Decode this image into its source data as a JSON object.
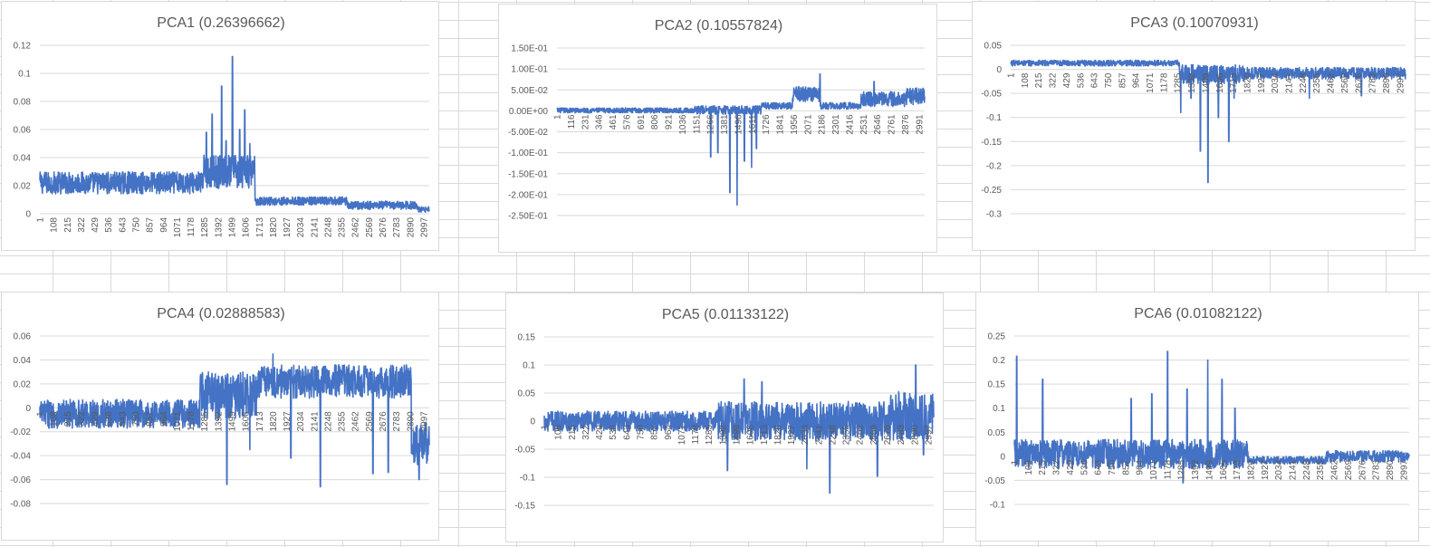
{
  "colors": {
    "series": "#4472c4",
    "grid": "#d9d9d9",
    "text": "#595959",
    "sheet_grid": "#d9d9d9"
  },
  "chart_data": [
    {
      "type": "line",
      "title": "PCA1 (0.26396662)",
      "xlabel": "",
      "ylabel": "",
      "ylim": [
        0,
        0.12
      ],
      "y_ticks": [
        0,
        0.02,
        0.04,
        0.06,
        0.08,
        0.1,
        0.12
      ],
      "y_tick_labels": [
        "0",
        "0.02",
        "0.04",
        "0.06",
        "0.08",
        "0.1",
        "0.12"
      ],
      "x_range": [
        1,
        3040
      ],
      "x_tick_labels": [
        "1",
        "108",
        "215",
        "322",
        "429",
        "536",
        "643",
        "750",
        "857",
        "964",
        "1071",
        "1178",
        "1285",
        "1392",
        "1499",
        "1606",
        "1713",
        "1820",
        "1927",
        "2034",
        "2141",
        "2248",
        "2355",
        "2462",
        "2569",
        "2676",
        "2783",
        "2890",
        "2997"
      ],
      "legend": false,
      "profile": {
        "segments": [
          {
            "from": 1,
            "to": 1280,
            "base": 0.022,
            "noise": 0.008
          },
          {
            "from": 1280,
            "to": 1680,
            "base": 0.03,
            "noise": 0.012
          },
          {
            "from": 1680,
            "to": 2400,
            "base": 0.009,
            "noise": 0.003
          },
          {
            "from": 2400,
            "to": 2950,
            "base": 0.006,
            "noise": 0.003
          },
          {
            "from": 2950,
            "to": 3040,
            "base": 0.003,
            "noise": 0.002
          }
        ],
        "spikes": [
          {
            "x": 1300,
            "y": 0.058
          },
          {
            "x": 1345,
            "y": 0.071
          },
          {
            "x": 1420,
            "y": 0.091
          },
          {
            "x": 1455,
            "y": 0.052
          },
          {
            "x": 1505,
            "y": 0.112
          },
          {
            "x": 1560,
            "y": 0.06
          },
          {
            "x": 1600,
            "y": 0.074
          },
          {
            "x": 1640,
            "y": 0.05
          }
        ]
      }
    },
    {
      "type": "line",
      "title": "PCA2 (0.10557824)",
      "xlabel": "",
      "ylabel": "",
      "ylim": [
        -0.25,
        0.15
      ],
      "y_ticks": [
        -0.25,
        -0.2,
        -0.15,
        -0.1,
        -0.05,
        0,
        0.05,
        0.1,
        0.15
      ],
      "y_tick_labels": [
        "-2.50E-01",
        "-2.00E-01",
        "-1.50E-01",
        "-1.00E-01",
        "-5.00E-02",
        "0.00E+00",
        "5.00E-02",
        "1.00E-01",
        "1.50E-01"
      ],
      "x_range": [
        1,
        3060
      ],
      "x_tick_labels": [
        "1",
        "116",
        "231",
        "346",
        "461",
        "576",
        "691",
        "806",
        "921",
        "1036",
        "1151",
        "1266",
        "1381",
        "1496",
        "1611",
        "1726",
        "1841",
        "1956",
        "2071",
        "2186",
        "2301",
        "2416",
        "2531",
        "2646",
        "2761",
        "2876",
        "2991"
      ],
      "legend": false,
      "profile": {
        "segments": [
          {
            "from": 1,
            "to": 1150,
            "base": 0.001,
            "noise": 0.006
          },
          {
            "from": 1150,
            "to": 1700,
            "base": 0.002,
            "noise": 0.01
          },
          {
            "from": 1700,
            "to": 1960,
            "base": 0.012,
            "noise": 0.008
          },
          {
            "from": 1960,
            "to": 2190,
            "base": 0.04,
            "noise": 0.018
          },
          {
            "from": 2190,
            "to": 2530,
            "base": 0.012,
            "noise": 0.008
          },
          {
            "from": 2530,
            "to": 2900,
            "base": 0.028,
            "noise": 0.018
          },
          {
            "from": 2900,
            "to": 3060,
            "base": 0.035,
            "noise": 0.02
          }
        ],
        "spikes": [
          {
            "x": 1280,
            "y": -0.11
          },
          {
            "x": 1340,
            "y": -0.1
          },
          {
            "x": 1440,
            "y": -0.195
          },
          {
            "x": 1500,
            "y": -0.225
          },
          {
            "x": 1560,
            "y": -0.12
          },
          {
            "x": 1620,
            "y": -0.135
          },
          {
            "x": 1660,
            "y": -0.09
          },
          {
            "x": 2190,
            "y": 0.088
          },
          {
            "x": 2640,
            "y": 0.07
          }
        ]
      }
    },
    {
      "type": "line",
      "title": "PCA3 (0.10070931)",
      "xlabel": "",
      "ylabel": "",
      "ylim": [
        -0.3,
        0.05
      ],
      "y_ticks": [
        -0.3,
        -0.25,
        -0.2,
        -0.15,
        -0.1,
        -0.05,
        0,
        0.05
      ],
      "y_tick_labels": [
        "-0.3",
        "-0.25",
        "-0.2",
        "-0.15",
        "-0.1",
        "-0.05",
        "0",
        "0.05"
      ],
      "x_range": [
        1,
        3040
      ],
      "x_tick_labels": [
        "1",
        "108",
        "215",
        "322",
        "429",
        "536",
        "643",
        "750",
        "857",
        "964",
        "1071",
        "1178",
        "1285",
        "1392",
        "1499",
        "1606",
        "1713",
        "1820",
        "1927",
        "2034",
        "2141",
        "2248",
        "2355",
        "2462",
        "2569",
        "2676",
        "2783",
        "2890",
        "2997"
      ],
      "legend": false,
      "profile": {
        "segments": [
          {
            "from": 1,
            "to": 1300,
            "base": 0.013,
            "noise": 0.006
          },
          {
            "from": 1300,
            "to": 1800,
            "base": -0.01,
            "noise": 0.02
          },
          {
            "from": 1800,
            "to": 3040,
            "base": -0.008,
            "noise": 0.012
          }
        ],
        "spikes": [
          {
            "x": 1310,
            "y": -0.09
          },
          {
            "x": 1390,
            "y": -0.06
          },
          {
            "x": 1460,
            "y": -0.17
          },
          {
            "x": 1520,
            "y": -0.235
          },
          {
            "x": 1600,
            "y": -0.1
          },
          {
            "x": 1680,
            "y": -0.15
          },
          {
            "x": 1720,
            "y": -0.06
          },
          {
            "x": 2300,
            "y": -0.06
          },
          {
            "x": 2700,
            "y": -0.055
          }
        ]
      }
    },
    {
      "type": "line",
      "title": "PCA4 (0.02888583)",
      "xlabel": "",
      "ylabel": "",
      "ylim": [
        -0.08,
        0.06
      ],
      "y_ticks": [
        -0.08,
        -0.06,
        -0.04,
        -0.02,
        0,
        0.02,
        0.04,
        0.06
      ],
      "y_tick_labels": [
        "-0.08",
        "-0.06",
        "-0.04",
        "-0.02",
        "0",
        "0.02",
        "0.04",
        "0.06"
      ],
      "x_range": [
        1,
        3040
      ],
      "x_tick_labels": [
        "1",
        "108",
        "215",
        "322",
        "429",
        "536",
        "643",
        "750",
        "857",
        "964",
        "1071",
        "1178",
        "1285",
        "1392",
        "1499",
        "1606",
        "1713",
        "1820",
        "1927",
        "2034",
        "2141",
        "2248",
        "2355",
        "2462",
        "2569",
        "2676",
        "2783",
        "2890",
        "2997"
      ],
      "legend": false,
      "profile": {
        "segments": [
          {
            "from": 1,
            "to": 1250,
            "base": -0.005,
            "noise": 0.012
          },
          {
            "from": 1250,
            "to": 1700,
            "base": 0.01,
            "noise": 0.02
          },
          {
            "from": 1700,
            "to": 2900,
            "base": 0.022,
            "noise": 0.014
          },
          {
            "from": 2900,
            "to": 3040,
            "base": -0.03,
            "noise": 0.018
          }
        ],
        "spikes": [
          {
            "x": 1460,
            "y": -0.064
          },
          {
            "x": 1640,
            "y": -0.035
          },
          {
            "x": 1960,
            "y": -0.042
          },
          {
            "x": 2190,
            "y": -0.066
          },
          {
            "x": 2600,
            "y": -0.055
          },
          {
            "x": 2720,
            "y": -0.054
          },
          {
            "x": 2960,
            "y": -0.06
          },
          {
            "x": 1820,
            "y": 0.045
          }
        ]
      }
    },
    {
      "type": "line",
      "title": "PCA5 (0.01133122)",
      "xlabel": "",
      "ylabel": "",
      "ylim": [
        -0.15,
        0.15
      ],
      "y_ticks": [
        -0.15,
        -0.1,
        -0.05,
        0,
        0.05,
        0.1,
        0.15
      ],
      "y_tick_labels": [
        "-0.15",
        "-0.1",
        "-0.05",
        "0",
        "0.05",
        "0.1",
        "0.15"
      ],
      "x_range": [
        1,
        3040
      ],
      "x_tick_labels": [
        "1",
        "108",
        "215",
        "322",
        "429",
        "536",
        "643",
        "750",
        "857",
        "964",
        "1071",
        "1178",
        "1285",
        "1392",
        "1499",
        "1606",
        "1713",
        "1820",
        "1927",
        "2034",
        "2141",
        "2248",
        "2355",
        "2462",
        "2569",
        "2676",
        "2783",
        "2890",
        "2997"
      ],
      "legend": false,
      "profile": {
        "segments": [
          {
            "from": 1,
            "to": 1350,
            "base": 0.0,
            "noise": 0.018
          },
          {
            "from": 1350,
            "to": 2700,
            "base": 0.0,
            "noise": 0.035
          },
          {
            "from": 2700,
            "to": 3040,
            "base": 0.01,
            "noise": 0.045
          }
        ],
        "spikes": [
          {
            "x": 1430,
            "y": -0.088
          },
          {
            "x": 1560,
            "y": 0.075
          },
          {
            "x": 1700,
            "y": 0.07
          },
          {
            "x": 2050,
            "y": -0.085
          },
          {
            "x": 2230,
            "y": -0.128
          },
          {
            "x": 2600,
            "y": -0.098
          },
          {
            "x": 2900,
            "y": 0.1
          },
          {
            "x": 2960,
            "y": -0.06
          }
        ]
      }
    },
    {
      "type": "line",
      "title": "PCA6 (0.01082122)",
      "xlabel": "",
      "ylabel": "",
      "ylim": [
        -0.1,
        0.25
      ],
      "y_ticks": [
        -0.1,
        -0.05,
        0,
        0.05,
        0.1,
        0.15,
        0.2,
        0.25
      ],
      "y_tick_labels": [
        "-0.1",
        "-0.05",
        "0",
        "0.05",
        "0.1",
        "0.15",
        "0.2",
        "0.25"
      ],
      "x_range": [
        1,
        3040
      ],
      "x_tick_labels": [
        "1",
        "108",
        "215",
        "322",
        "429",
        "536",
        "643",
        "750",
        "857",
        "964",
        "1071",
        "1178",
        "1285",
        "1392",
        "1499",
        "1606",
        "1713",
        "1820",
        "1927",
        "2034",
        "2141",
        "2248",
        "2355",
        "2462",
        "2569",
        "2676",
        "2783",
        "2890",
        "2997"
      ],
      "legend": false,
      "profile": {
        "segments": [
          {
            "from": 1,
            "to": 1800,
            "base": 0.005,
            "noise": 0.03
          },
          {
            "from": 1800,
            "to": 2400,
            "base": -0.008,
            "noise": 0.008
          },
          {
            "from": 2400,
            "to": 3040,
            "base": 0.0,
            "noise": 0.012
          }
        ],
        "spikes": [
          {
            "x": 20,
            "y": 0.208
          },
          {
            "x": 220,
            "y": 0.16
          },
          {
            "x": 900,
            "y": 0.12
          },
          {
            "x": 1060,
            "y": 0.13
          },
          {
            "x": 1180,
            "y": 0.218
          },
          {
            "x": 1330,
            "y": 0.14
          },
          {
            "x": 1490,
            "y": 0.2
          },
          {
            "x": 1600,
            "y": 0.16
          },
          {
            "x": 1700,
            "y": 0.1
          },
          {
            "x": 1300,
            "y": -0.055
          }
        ]
      }
    }
  ]
}
